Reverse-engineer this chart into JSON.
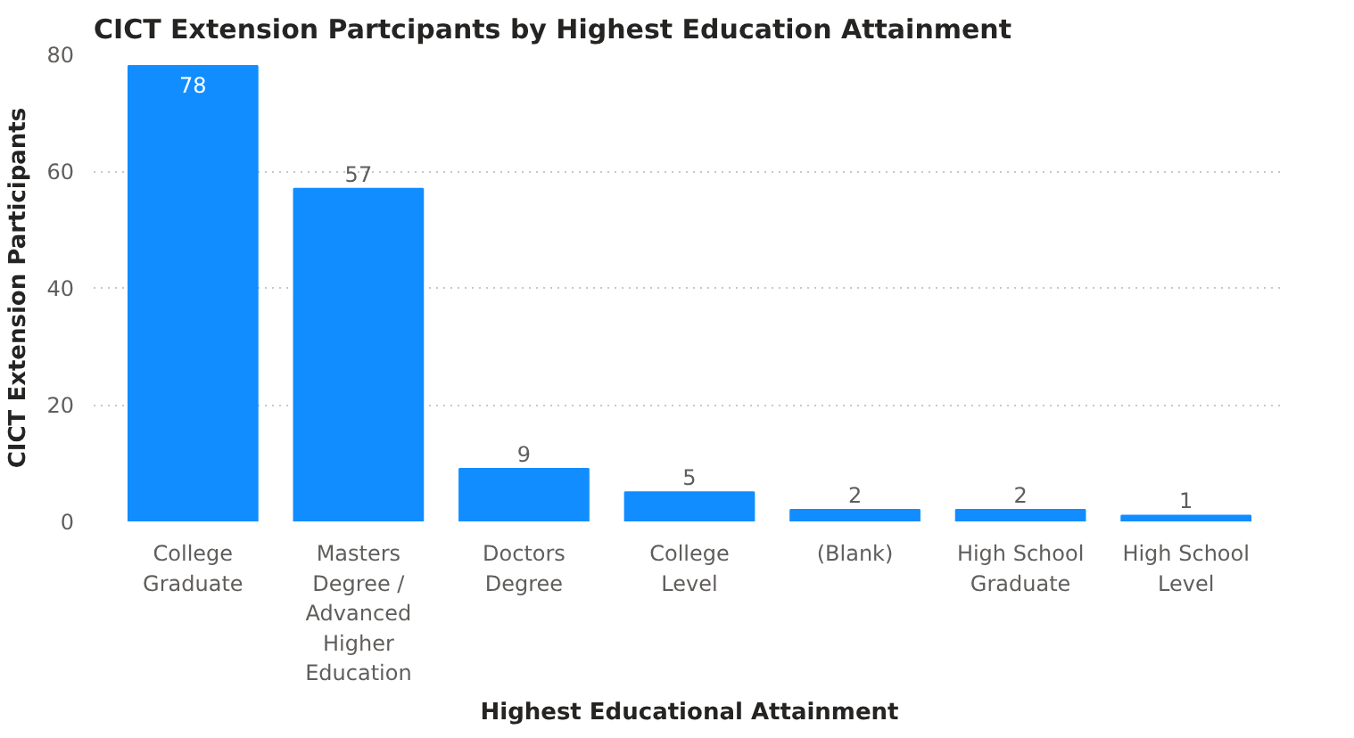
{
  "chart_data": {
    "type": "bar",
    "title": "CICT Extension Partcipants by Highest Education Attainment",
    "xlabel": "Highest Educational Attainment",
    "ylabel": "CICT Extension Participants",
    "categories": [
      "College Graduate",
      "Masters Degree / Advanced Higher Education",
      "Doctors Degree",
      "College Level",
      "(Blank)",
      "High School Graduate",
      "High School Level"
    ],
    "values": [
      78,
      57,
      9,
      5,
      2,
      2,
      1
    ],
    "color": "#118dff",
    "ylim": [
      0,
      80
    ],
    "yticks": [
      0,
      20,
      40,
      60,
      80
    ],
    "grid": "y",
    "data_labels": true
  }
}
